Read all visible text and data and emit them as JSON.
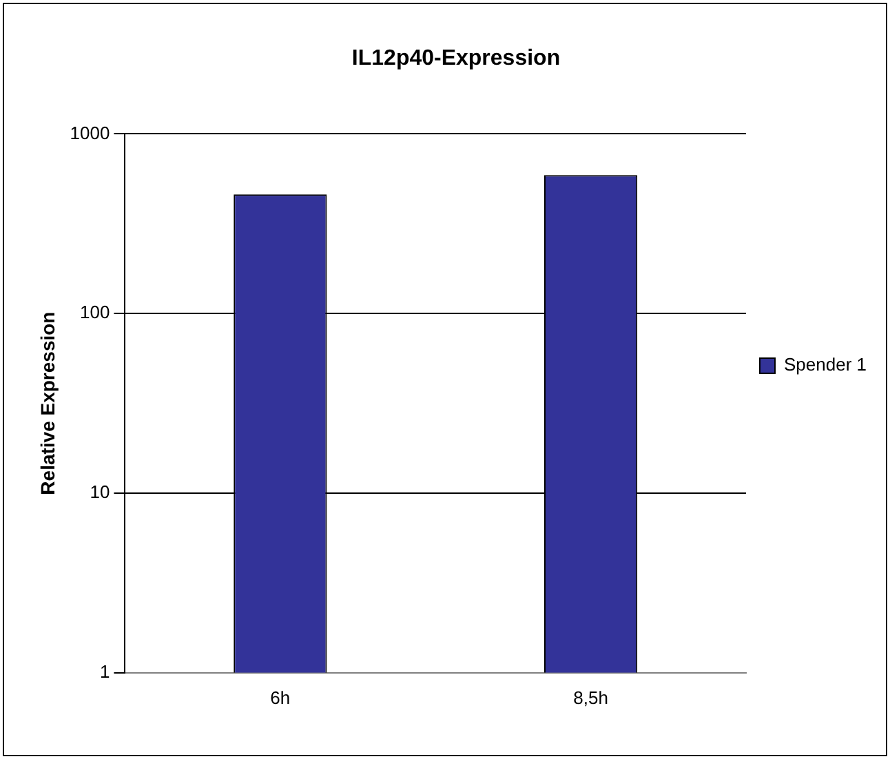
{
  "chart_data": {
    "type": "bar",
    "title": "IL12p40-Expression",
    "ylabel": "Relative Expression",
    "categories": [
      "6h",
      "8,5h"
    ],
    "series": [
      {
        "name": "Spender 1",
        "color": "#333399",
        "values": [
          460,
          590
        ]
      }
    ],
    "log": true,
    "ylim": [
      1,
      1000
    ],
    "yticks": [
      1,
      10,
      100,
      1000
    ],
    "grid": "y",
    "legend": "right"
  }
}
